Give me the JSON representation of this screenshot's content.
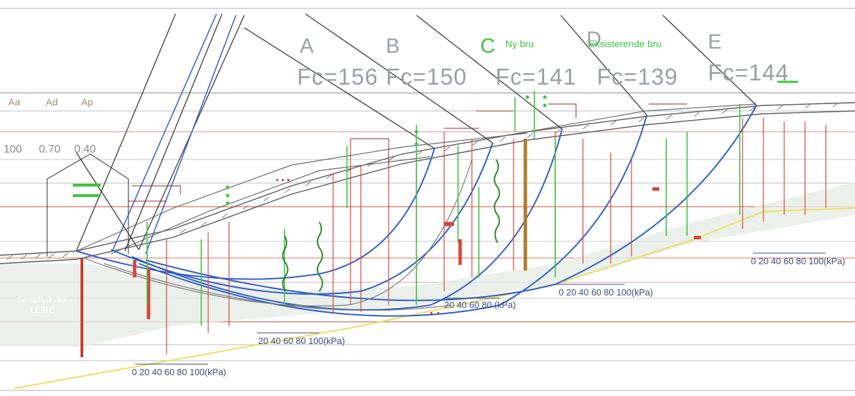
{
  "sections": [
    {
      "letter": "A",
      "fc": "Fc=156"
    },
    {
      "letter": "B",
      "fc": "Fc=150"
    },
    {
      "letter": "C",
      "fc": "Fc=141",
      "note": "Ny bru"
    },
    {
      "letter": "D",
      "fc": "Fc=139",
      "note": "Eksisterende bru"
    },
    {
      "letter": "E",
      "fc": "Fc=144"
    }
  ],
  "area_factors": {
    "labels": [
      "Aa",
      "Ad",
      "Ap"
    ],
    "values": [
      "100",
      "0.70",
      "0.40"
    ]
  },
  "soil_label": {
    "line1": "Sensitiv/kvikk",
    "line2": "LEIRE"
  },
  "kpa_scales": [
    "0  20 40 60 80 100(kPa)",
    "20 40 60 80 100(kPa)",
    "20 40 60 80 (kPa)",
    "0  20 40 60 80 100(kPa)",
    "0  20 40 60 80 100(kPa)"
  ],
  "colors": {
    "slip_surface": "#2f5fc8",
    "terrain": "#5a5a5a",
    "clay_fill": "#e6ece6",
    "red_lines": "#d8453a",
    "green_lines": "#3ec43e",
    "ground_line": "#e8e060"
  }
}
